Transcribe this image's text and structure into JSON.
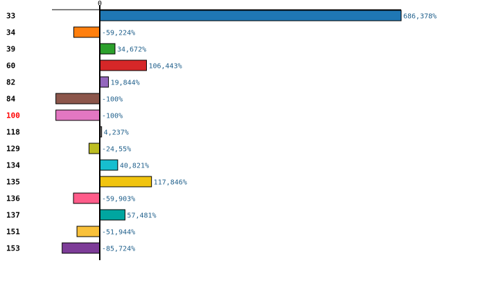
{
  "chart_data": {
    "type": "bar",
    "orientation": "horizontal",
    "categories": [
      "33",
      "34",
      "39",
      "60",
      "82",
      "84",
      "100",
      "118",
      "129",
      "134",
      "135",
      "136",
      "137",
      "151",
      "153"
    ],
    "values": [
      686.378,
      -59.224,
      34.672,
      106.443,
      19.844,
      -100,
      -100,
      4.237,
      -24.55,
      40.821,
      117.846,
      -59.903,
      57.481,
      -51.944,
      -85.724
    ],
    "value_labels": [
      "686,378%",
      "-59,224%",
      "34,672%",
      "106,443%",
      "19,844%",
      "-100%",
      "-100%",
      "4,237%",
      "-24,55%",
      "40,821%",
      "117,846%",
      "-59,903%",
      "57,481%",
      "-51,944%",
      "-85,724%"
    ],
    "colors": [
      "#1f77b4",
      "#ff7f0e",
      "#2ca02c",
      "#d62728",
      "#9467bd",
      "#8c564b",
      "#e377c2",
      "#7f7f7f",
      "#bcbd22",
      "#17becf",
      "#f1c40f",
      "#ff5c8a",
      "#00a6a0",
      "#f9c13a",
      "#7d3c98"
    ],
    "highlight_category": "100",
    "highlight_color": "#ff0000",
    "xlim": [
      -100,
      686.378
    ],
    "x_ticks": [
      {
        "value": 0,
        "label": "0"
      }
    ],
    "title": "",
    "xlabel": "",
    "ylabel": "",
    "grid": false,
    "legend": "none"
  }
}
